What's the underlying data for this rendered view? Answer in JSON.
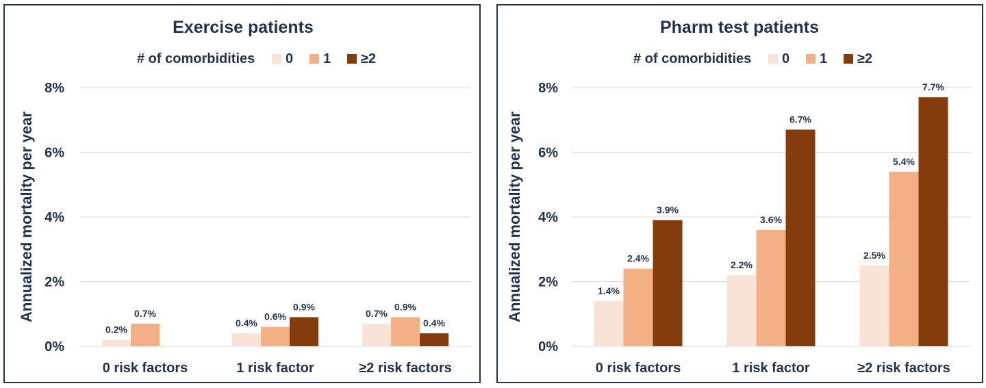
{
  "chart_data": [
    {
      "type": "bar",
      "title": "Exercise patients",
      "legend_title": "# of comorbidities",
      "legend_position": "top",
      "ylabel": "Annualized mortality per year",
      "ylim": [
        0,
        8
      ],
      "yticks": [
        "0%",
        "2%",
        "4%",
        "6%",
        "8%"
      ],
      "grid": true,
      "categories": [
        "0 risk factors",
        "1 risk factor",
        "≥2 risk factors"
      ],
      "series": [
        {
          "name": "0",
          "color": "#f8e3d6",
          "values": [
            0.2,
            0.4,
            0.7
          ],
          "labels": [
            "0.2%",
            "0.4%",
            "0.7%"
          ]
        },
        {
          "name": "1",
          "color": "#f2b084",
          "values": [
            0.7,
            0.6,
            0.9
          ],
          "labels": [
            "0.7%",
            "0.6%",
            "0.9%"
          ]
        },
        {
          "name": "≥2",
          "color": "#843c0c",
          "values": [
            null,
            0.9,
            0.4
          ],
          "labels": [
            "",
            "0.9%",
            "0.4%"
          ]
        }
      ]
    },
    {
      "type": "bar",
      "title": "Pharm test patients",
      "legend_title": "# of comorbidities",
      "legend_position": "top",
      "ylabel": "Annualized mortality per year",
      "ylim": [
        0,
        8
      ],
      "yticks": [
        "0%",
        "2%",
        "4%",
        "6%",
        "8%"
      ],
      "grid": true,
      "categories": [
        "0 risk factors",
        "1 risk factor",
        "≥2 risk factors"
      ],
      "series": [
        {
          "name": "0",
          "color": "#f8e3d6",
          "values": [
            1.4,
            2.2,
            2.5
          ],
          "labels": [
            "1.4%",
            "2.2%",
            "2.5%"
          ]
        },
        {
          "name": "1",
          "color": "#f2b084",
          "values": [
            2.4,
            3.6,
            5.4
          ],
          "labels": [
            "2.4%",
            "3.6%",
            "5.4%"
          ]
        },
        {
          "name": "≥2",
          "color": "#843c0c",
          "values": [
            3.9,
            6.7,
            7.7
          ],
          "labels": [
            "3.9%",
            "6.7%",
            "7.7%"
          ]
        }
      ]
    }
  ]
}
